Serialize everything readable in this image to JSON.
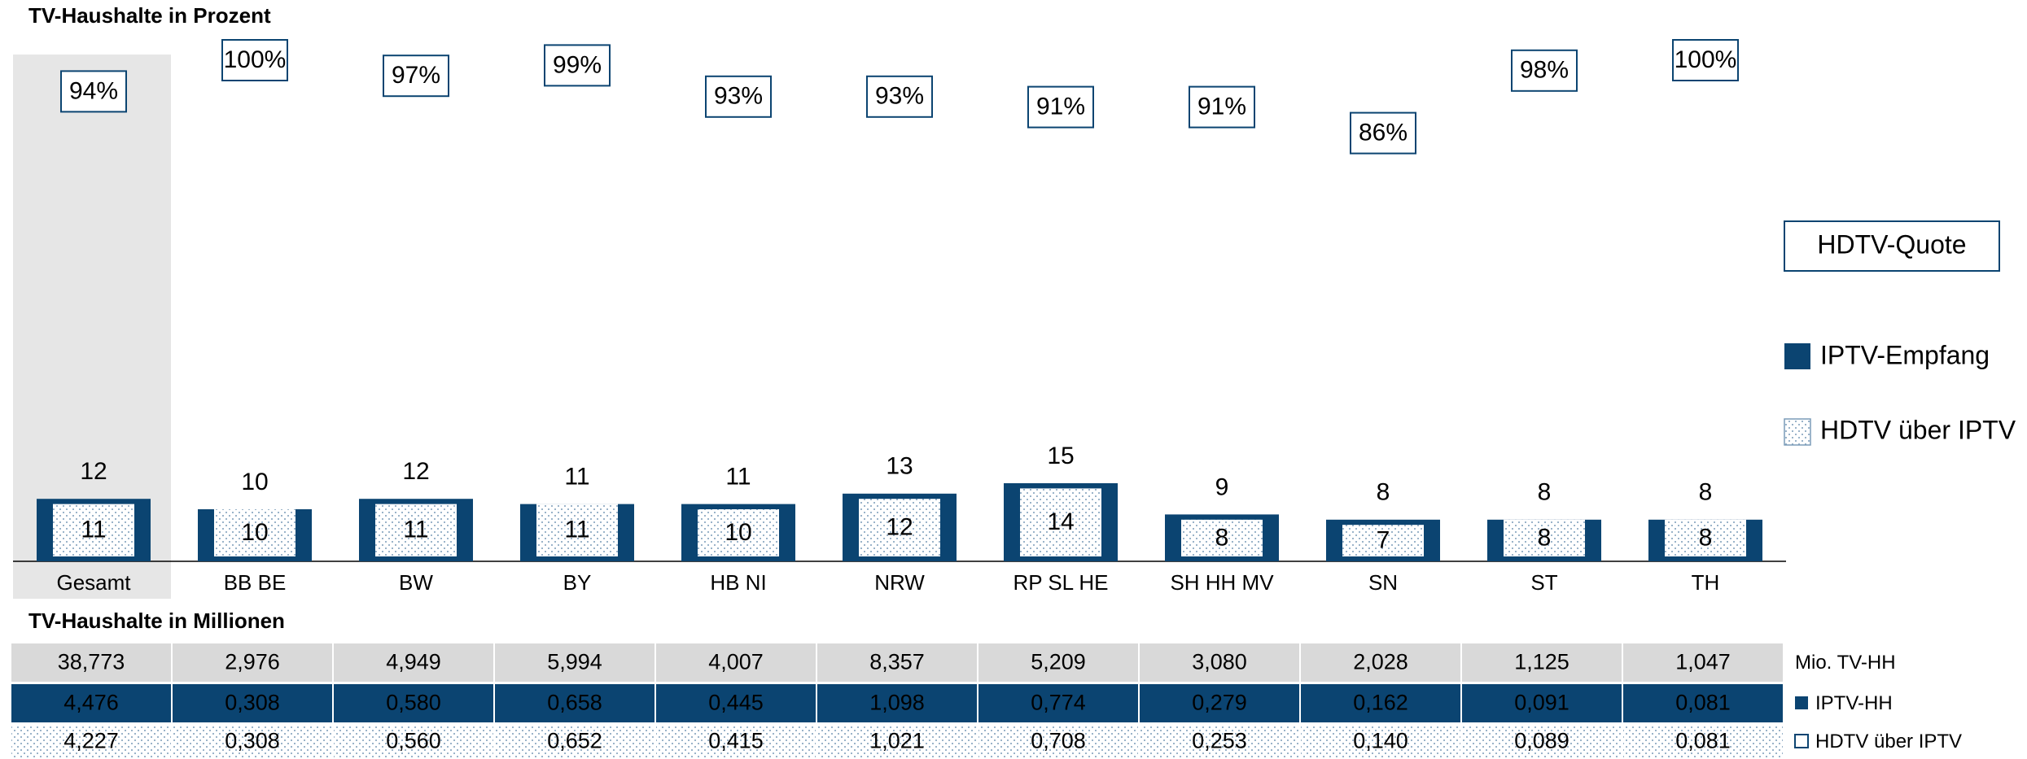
{
  "chart_data": {
    "type": "bar",
    "title": "TV-Haushalte in Prozent",
    "categories": [
      "Gesamt",
      "BB BE",
      "BW",
      "BY",
      "HB NI",
      "NRW",
      "RP SL HE",
      "SH HH MV",
      "SN",
      "ST",
      "TH"
    ],
    "series": [
      {
        "name": "IPTV-Empfang",
        "color": "#0b4471",
        "values": [
          12,
          10,
          12,
          11,
          11,
          13,
          15,
          9,
          8,
          8,
          8
        ]
      },
      {
        "name": "HDTV über IPTV",
        "color": "#ffffff",
        "values": [
          11,
          10,
          11,
          11,
          10,
          12,
          14,
          8,
          7,
          8,
          8
        ]
      }
    ],
    "quote": {
      "name": "HDTV-Quote",
      "values": [
        94,
        100,
        97,
        99,
        93,
        93,
        91,
        91,
        86,
        98,
        100
      ],
      "value_labels": [
        "94%",
        "100%",
        "97%",
        "99%",
        "93%",
        "93%",
        "91%",
        "91%",
        "86%",
        "98%",
        "100%"
      ]
    }
  },
  "table": {
    "title": "TV-Haushalte in Millionen",
    "rows": [
      {
        "label": "Mio. TV-HH",
        "values": [
          "38,773",
          "2,976",
          "4,949",
          "5,994",
          "4,007",
          "8,357",
          "5,209",
          "3,080",
          "2,028",
          "1,125",
          "1,047"
        ]
      },
      {
        "label": "IPTV-HH",
        "values": [
          "4,476",
          "0,308",
          "0,580",
          "0,658",
          "0,445",
          "1,098",
          "0,774",
          "0,279",
          "0,162",
          "0,091",
          "0,081"
        ]
      },
      {
        "label": "HDTV über IPTV",
        "values": [
          "4,227",
          "0,308",
          "0,560",
          "0,652",
          "0,415",
          "1,021",
          "0,708",
          "0,253",
          "0,140",
          "0,089",
          "0,081"
        ]
      }
    ]
  }
}
